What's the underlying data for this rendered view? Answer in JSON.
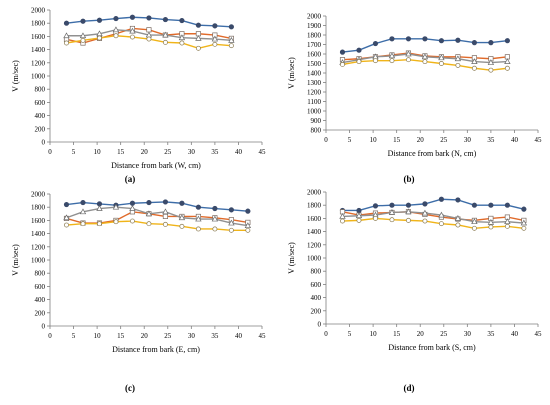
{
  "colors": {
    "blue": "#3d6da8",
    "orange": "#e06a2a",
    "gray": "#909090",
    "yellow": "#f0b419",
    "axis": "#7f7f7f"
  },
  "chart_data": [
    {
      "type": "line",
      "caption": "(a)",
      "xlabel": "Distance from bark (W, cm)",
      "ylabel": "V (m/sec)",
      "xlim": [
        0,
        45
      ],
      "ylim": [
        0,
        2000
      ],
      "xticks": [
        0,
        5,
        10,
        15,
        20,
        25,
        30,
        35,
        40,
        45
      ],
      "yticks": [
        0,
        200,
        400,
        600,
        800,
        1000,
        1200,
        1400,
        1600,
        1800,
        2000
      ],
      "grid": false,
      "series": [
        {
          "color": "blue",
          "marker": "circle",
          "x": [
            3.5,
            7,
            10.5,
            14,
            17.5,
            21,
            24.5,
            28,
            31.5,
            35,
            38.5
          ],
          "y": [
            1800,
            1830,
            1845,
            1870,
            1890,
            1880,
            1855,
            1840,
            1770,
            1760,
            1745
          ]
        },
        {
          "color": "orange",
          "marker": "square",
          "x": [
            3.5,
            7,
            10.5,
            14,
            17.5,
            21,
            24.5,
            28,
            31.5,
            35,
            38.5
          ],
          "y": [
            1555,
            1500,
            1570,
            1640,
            1720,
            1700,
            1620,
            1640,
            1640,
            1620,
            1570
          ]
        },
        {
          "color": "gray",
          "marker": "triangle",
          "x": [
            3.5,
            7,
            10.5,
            14,
            17.5,
            21,
            24.5,
            28,
            31.5,
            35,
            38.5
          ],
          "y": [
            1610,
            1610,
            1640,
            1700,
            1680,
            1620,
            1620,
            1580,
            1570,
            1560,
            1540
          ]
        },
        {
          "color": "yellow",
          "marker": "circle-open",
          "x": [
            3.5,
            7,
            10.5,
            14,
            17.5,
            21,
            24.5,
            28,
            31.5,
            35,
            38.5
          ],
          "y": [
            1500,
            1540,
            1575,
            1610,
            1590,
            1560,
            1510,
            1500,
            1420,
            1480,
            1460
          ]
        }
      ]
    },
    {
      "type": "line",
      "caption": "(b)",
      "xlabel": "Distance from bark (N, cm)",
      "ylabel": "V (m/sec)",
      "xlim": [
        0,
        45
      ],
      "ylim": [
        800,
        2000
      ],
      "xticks": [
        0,
        5,
        10,
        15,
        20,
        25,
        30,
        35,
        40,
        45
      ],
      "yticks": [
        800,
        900,
        1000,
        1100,
        1200,
        1300,
        1400,
        1500,
        1600,
        1700,
        1800,
        1900,
        2000
      ],
      "grid": false,
      "series": [
        {
          "color": "blue",
          "marker": "circle",
          "x": [
            3.5,
            7,
            10.5,
            14,
            17.5,
            21,
            24.5,
            28,
            31.5,
            35,
            38.5
          ],
          "y": [
            1620,
            1640,
            1710,
            1760,
            1760,
            1760,
            1740,
            1745,
            1720,
            1720,
            1740
          ]
        },
        {
          "color": "orange",
          "marker": "square",
          "x": [
            3.5,
            7,
            10.5,
            14,
            17.5,
            21,
            24.5,
            28,
            31.5,
            35,
            38.5
          ],
          "y": [
            1540,
            1550,
            1570,
            1590,
            1610,
            1580,
            1570,
            1570,
            1560,
            1550,
            1570
          ]
        },
        {
          "color": "gray",
          "marker": "triangle",
          "x": [
            3.5,
            7,
            10.5,
            14,
            17.5,
            21,
            24.5,
            28,
            31.5,
            35,
            38.5
          ],
          "y": [
            1510,
            1540,
            1570,
            1580,
            1600,
            1570,
            1560,
            1550,
            1520,
            1510,
            1520
          ]
        },
        {
          "color": "yellow",
          "marker": "circle-open",
          "x": [
            3.5,
            7,
            10.5,
            14,
            17.5,
            21,
            24.5,
            28,
            31.5,
            35,
            38.5
          ],
          "y": [
            1490,
            1520,
            1530,
            1530,
            1540,
            1520,
            1500,
            1480,
            1450,
            1430,
            1450
          ]
        }
      ]
    },
    {
      "type": "line",
      "caption": "(c)",
      "xlabel": "Distance from bark (E, cm)",
      "ylabel": "V (m/sec)",
      "xlim": [
        0,
        45
      ],
      "ylim": [
        0,
        2000
      ],
      "xticks": [
        0,
        5,
        10,
        15,
        20,
        25,
        30,
        35,
        40,
        45
      ],
      "yticks": [
        0,
        200,
        400,
        600,
        800,
        1000,
        1200,
        1400,
        1600,
        1800,
        2000
      ],
      "grid": false,
      "series": [
        {
          "color": "blue",
          "marker": "circle",
          "x": [
            3.5,
            7,
            10.5,
            14,
            17.5,
            21,
            24.5,
            28,
            31.5,
            35,
            38.5,
            42
          ],
          "y": [
            1840,
            1870,
            1850,
            1830,
            1860,
            1870,
            1880,
            1860,
            1800,
            1780,
            1760,
            1740
          ]
        },
        {
          "color": "orange",
          "marker": "square",
          "x": [
            3.5,
            7,
            10.5,
            14,
            17.5,
            21,
            24.5,
            28,
            31.5,
            35,
            38.5,
            42
          ],
          "y": [
            1630,
            1560,
            1560,
            1600,
            1730,
            1700,
            1660,
            1660,
            1660,
            1640,
            1610,
            1570
          ]
        },
        {
          "color": "gray",
          "marker": "triangle",
          "x": [
            3.5,
            7,
            10.5,
            14,
            17.5,
            21,
            24.5,
            28,
            31.5,
            35,
            38.5,
            42
          ],
          "y": [
            1640,
            1730,
            1780,
            1800,
            1780,
            1700,
            1730,
            1640,
            1620,
            1620,
            1560,
            1520
          ]
        },
        {
          "color": "yellow",
          "marker": "circle-open",
          "x": [
            3.5,
            7,
            10.5,
            14,
            17.5,
            21,
            24.5,
            28,
            31.5,
            35,
            38.5,
            42
          ],
          "y": [
            1530,
            1550,
            1550,
            1580,
            1590,
            1550,
            1540,
            1510,
            1470,
            1470,
            1450,
            1450
          ]
        }
      ]
    },
    {
      "type": "line",
      "caption": "(d)",
      "xlabel": "Distance from bark (S, cm)",
      "ylabel": "V (m/sec)",
      "xlim": [
        0,
        45
      ],
      "ylim": [
        0,
        2000
      ],
      "xticks": [
        0,
        5,
        10,
        15,
        20,
        25,
        30,
        35,
        40,
        45
      ],
      "yticks": [
        0,
        200,
        400,
        600,
        800,
        1000,
        1200,
        1400,
        1600,
        1800,
        2000
      ],
      "grid": false,
      "series": [
        {
          "color": "blue",
          "marker": "circle",
          "x": [
            3.5,
            7,
            10.5,
            14,
            17.5,
            21,
            24.5,
            28,
            31.5,
            35,
            38.5,
            42
          ],
          "y": [
            1720,
            1720,
            1790,
            1800,
            1800,
            1820,
            1890,
            1880,
            1800,
            1800,
            1800,
            1740
          ]
        },
        {
          "color": "orange",
          "marker": "square",
          "x": [
            3.5,
            7,
            10.5,
            14,
            17.5,
            21,
            24.5,
            28,
            31.5,
            35,
            38.5,
            42
          ],
          "y": [
            1700,
            1650,
            1680,
            1690,
            1700,
            1660,
            1620,
            1590,
            1570,
            1600,
            1620,
            1570
          ]
        },
        {
          "color": "gray",
          "marker": "triangle",
          "x": [
            3.5,
            7,
            10.5,
            14,
            17.5,
            21,
            24.5,
            28,
            31.5,
            35,
            38.5,
            42
          ],
          "y": [
            1630,
            1640,
            1650,
            1690,
            1700,
            1680,
            1650,
            1600,
            1550,
            1540,
            1550,
            1530
          ]
        },
        {
          "color": "yellow",
          "marker": "circle-open",
          "x": [
            3.5,
            7,
            10.5,
            14,
            17.5,
            21,
            24.5,
            28,
            31.5,
            35,
            38.5,
            42
          ],
          "y": [
            1560,
            1570,
            1600,
            1580,
            1570,
            1560,
            1520,
            1500,
            1450,
            1470,
            1480,
            1450
          ]
        }
      ]
    }
  ]
}
